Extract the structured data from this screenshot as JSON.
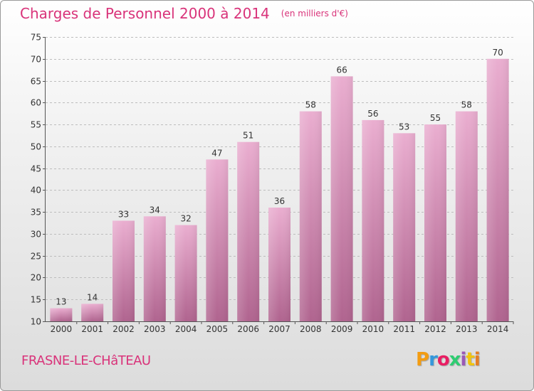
{
  "header": {
    "title": "Charges de Personnel 2000 à 2014",
    "unit": "(en milliers d'€)"
  },
  "footer": {
    "commune": "FRASNE-LE-CHâTEAU",
    "brand": "Proxiti",
    "brand_colors": [
      "#f39c12",
      "#3498db",
      "#e91e63",
      "#2ecc71",
      "#9b59b6",
      "#f1c40f",
      "#e67e22"
    ]
  },
  "colors": {
    "title": "#d9337a",
    "bar_top": "#eaaed0",
    "bar_bottom": "#b0648f",
    "grid": "#bdbdbd",
    "axis": "#555555"
  },
  "chart_data": {
    "type": "bar",
    "title": "Charges de Personnel 2000 à 2014",
    "subtitle": "(en milliers d'€)",
    "xlabel": "",
    "ylabel": "",
    "categories": [
      "2000",
      "2001",
      "2002",
      "2003",
      "2004",
      "2005",
      "2006",
      "2007",
      "2008",
      "2009",
      "2010",
      "2011",
      "2012",
      "2013",
      "2014"
    ],
    "values": [
      13,
      14,
      33,
      34,
      32,
      47,
      51,
      36,
      58,
      66,
      56,
      53,
      55,
      58,
      70
    ],
    "ylim": [
      10,
      75
    ],
    "yticks": [
      10,
      15,
      20,
      25,
      30,
      35,
      40,
      45,
      50,
      55,
      60,
      65,
      70,
      75
    ],
    "grid": true,
    "grid_style": "dashed horizontal",
    "legend": "none"
  }
}
